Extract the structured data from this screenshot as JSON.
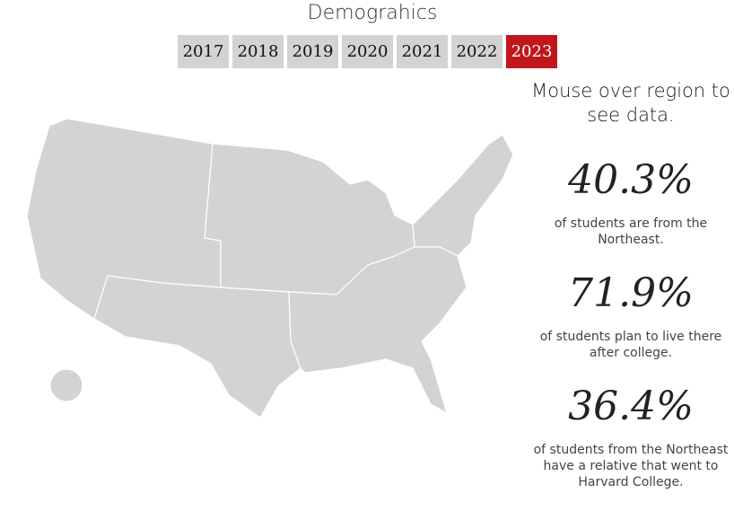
{
  "header": {
    "title": "Demograhics"
  },
  "years": [
    "2017",
    "2018",
    "2019",
    "2020",
    "2021",
    "2022",
    "2023"
  ],
  "selected_year": "2023",
  "prompt": "Mouse over region to see data.",
  "stats": [
    {
      "value": "40.3%",
      "text": "of students are from the Northeast."
    },
    {
      "value": "71.9%",
      "text": "of students plan to live there after college."
    },
    {
      "value": "36.4%",
      "text": "of students from the Northeast have a relative that went to Harvard College."
    }
  ]
}
